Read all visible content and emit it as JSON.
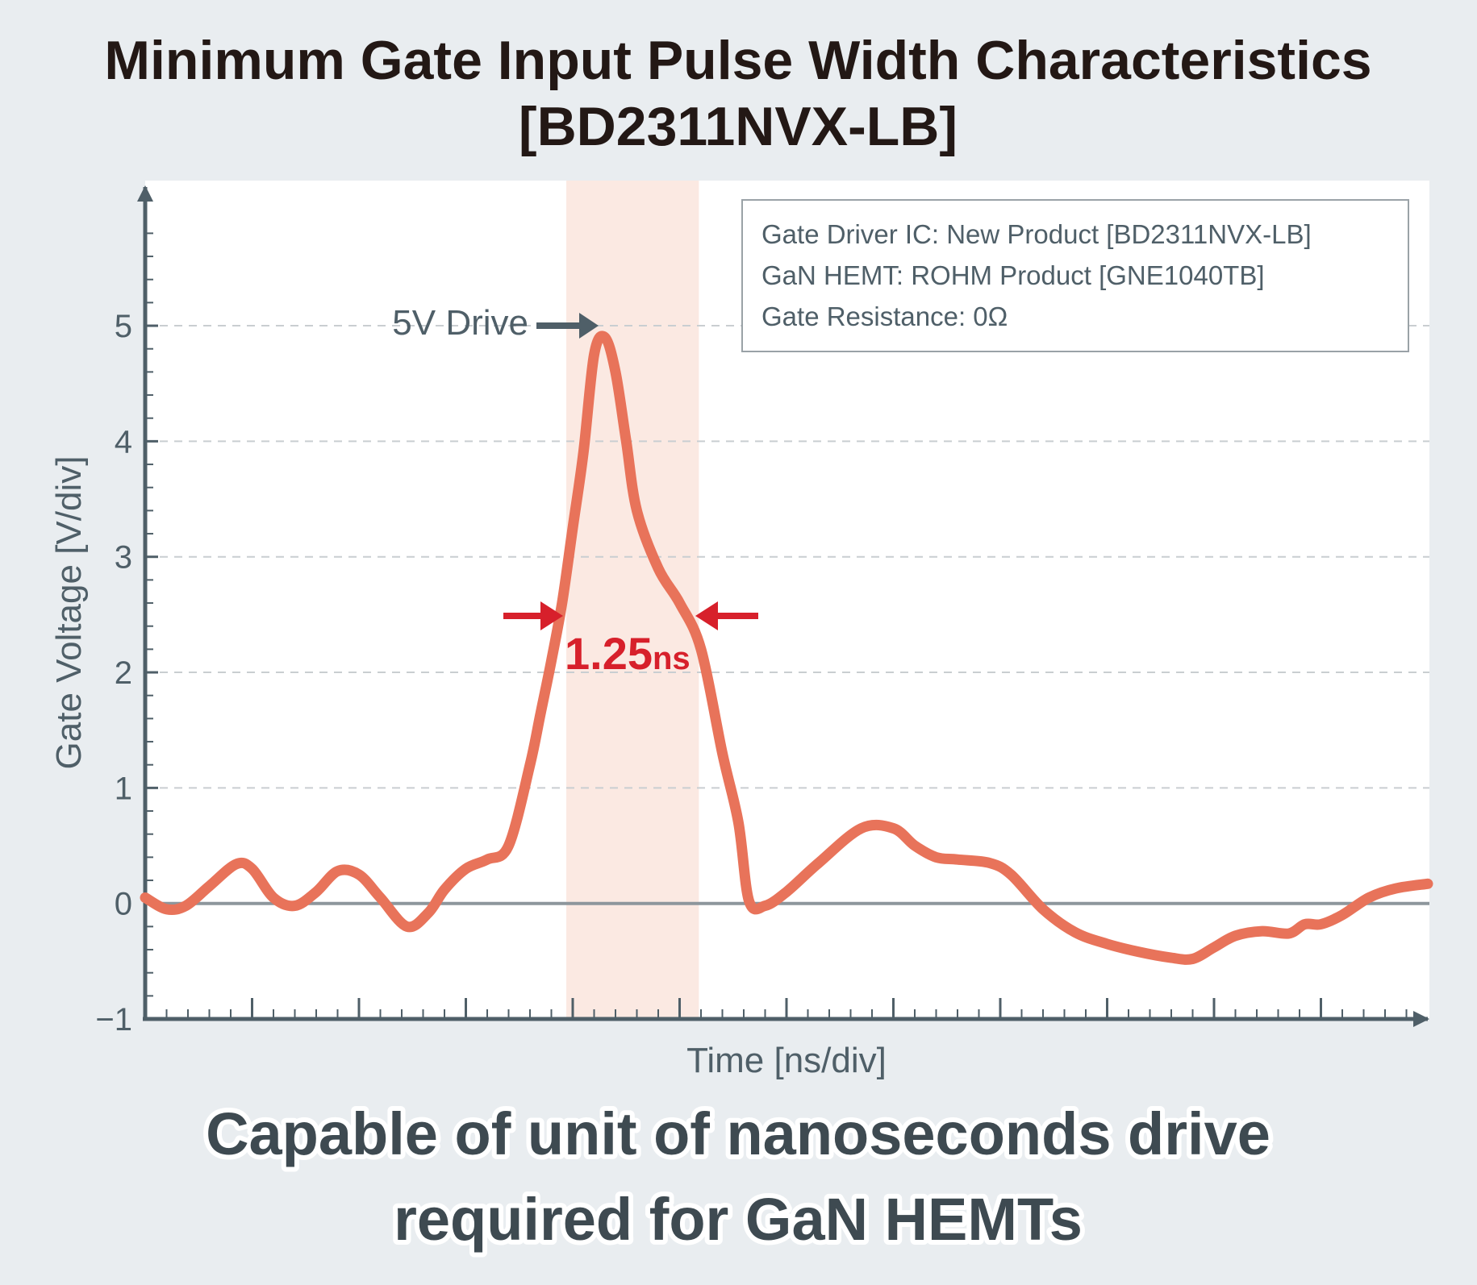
{
  "title": {
    "line1": "Minimum Gate Input Pulse Width Characteristics",
    "line2": "[BD2311NVX-LB]"
  },
  "caption": {
    "line1": "Capable of unit of nanoseconds drive",
    "line2": "required for GaN HEMTs"
  },
  "legend": {
    "lines": [
      "Gate Driver IC: New Product [BD2311NVX-LB]",
      "GaN HEMT: ROHM  Product [GNE1040TB]",
      "Gate Resistance: 0Ω"
    ]
  },
  "annotations": {
    "peak_label": "5V Drive",
    "pulse_width_value": "1.25",
    "pulse_width_unit": "ns"
  },
  "colors": {
    "background": "#e9edf0",
    "plot_area": "#ffffff",
    "axis": "#4f5f68",
    "trace": "#e8735a",
    "highlight_band": "#fbe9e2",
    "pulse_arrow": "#d7202b",
    "zero_line": "#8d969c",
    "grid": "#c9ced1"
  },
  "chart_data": {
    "type": "line",
    "xlabel": "Time [ns/div]",
    "ylabel": "Gate Voltage [V/div]",
    "ylim": [
      -1,
      6
    ],
    "xlim": [
      0,
      12
    ],
    "y_ticks": [
      "−1",
      "0",
      "1",
      "2",
      "3",
      "4",
      "5"
    ],
    "y_tick_values": [
      -1,
      0,
      1,
      2,
      3,
      4,
      5
    ],
    "grid": "horizontal dashed at 1–5 V",
    "legend_position": "top-right",
    "highlight_band_x": [
      3.94,
      5.18
    ],
    "pulse_width_level_v": 2.5,
    "series": [
      {
        "x": [
          0.0,
          0.2,
          0.38,
          0.6,
          0.85,
          1.0,
          1.2,
          1.4,
          1.6,
          1.8,
          2.0,
          2.2,
          2.45,
          2.65,
          2.8,
          3.0,
          3.2,
          3.4,
          3.6,
          3.7,
          3.8,
          3.9,
          4.0,
          4.1,
          4.2,
          4.3,
          4.4,
          4.5,
          4.6,
          4.8,
          5.0,
          5.2,
          5.4,
          5.55,
          5.65,
          5.8,
          6.0,
          6.3,
          6.7,
          7.0,
          7.2,
          7.4,
          7.6,
          7.9,
          8.1,
          8.4,
          8.7,
          9.0,
          9.3,
          9.6,
          9.8,
          10.0,
          10.2,
          10.45,
          10.7,
          10.85,
          11.0,
          11.2,
          11.45,
          11.7,
          12.0
        ],
        "y": [
          0.05,
          -0.05,
          -0.02,
          0.15,
          0.34,
          0.3,
          0.05,
          -0.02,
          0.1,
          0.28,
          0.25,
          0.05,
          -0.2,
          -0.08,
          0.12,
          0.3,
          0.38,
          0.5,
          1.2,
          1.65,
          2.1,
          2.6,
          3.25,
          3.9,
          4.75,
          4.9,
          4.6,
          4.0,
          3.4,
          2.9,
          2.6,
          2.2,
          1.3,
          0.7,
          0.02,
          -0.02,
          0.1,
          0.35,
          0.65,
          0.65,
          0.5,
          0.4,
          0.38,
          0.35,
          0.25,
          -0.05,
          -0.25,
          -0.35,
          -0.42,
          -0.47,
          -0.48,
          -0.38,
          -0.28,
          -0.24,
          -0.26,
          -0.18,
          -0.18,
          -0.1,
          0.05,
          0.13,
          0.17
        ]
      }
    ]
  }
}
